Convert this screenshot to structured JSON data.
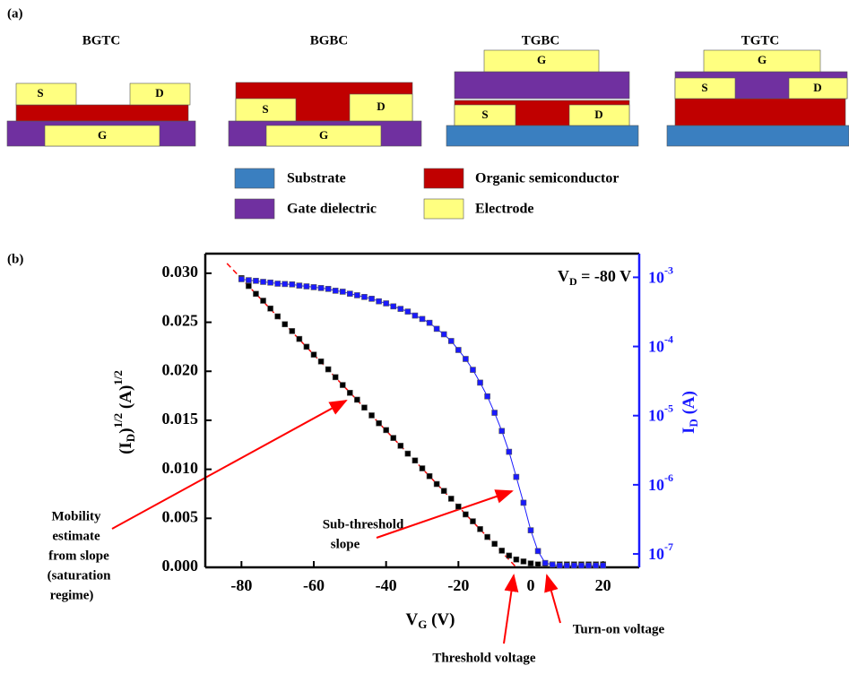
{
  "panel_a": {
    "label": "(a)",
    "structures": [
      {
        "name": "BGTC",
        "labels": [
          "S",
          "D",
          "G"
        ]
      },
      {
        "name": "BGBC",
        "labels": [
          "S",
          "D",
          "G"
        ]
      },
      {
        "name": "TGBC",
        "labels": [
          "G",
          "S",
          "D"
        ]
      },
      {
        "name": "TGTC",
        "labels": [
          "G",
          "S",
          "D"
        ]
      }
    ],
    "legend": [
      "Substrate",
      "Gate dielectric",
      "Organic semiconductor",
      "Electrode"
    ]
  },
  "chart_data": {
    "type": "scatter",
    "panel_label": "(b)",
    "xlabel": [
      "V",
      "G",
      " (V)"
    ],
    "ylabel": [
      "(I",
      "D",
      ")",
      "1/2",
      " (A)",
      "1/2"
    ],
    "y2label": [
      "I",
      "D",
      " (A)"
    ],
    "xlim": [
      -90,
      30
    ],
    "xticks": [
      -80,
      -60,
      -40,
      -20,
      0,
      20
    ],
    "ylim": [
      0,
      0.032
    ],
    "yticks": [
      {
        "value": 0,
        "label": "0.000"
      },
      {
        "value": 0.005,
        "label": "0.005"
      },
      {
        "value": 0.01,
        "label": "0.010"
      },
      {
        "value": 0.015,
        "label": "0.015"
      },
      {
        "value": 0.02,
        "label": "0.020"
      },
      {
        "value": 0.025,
        "label": "0.025"
      },
      {
        "value": 0.03,
        "label": "0.030"
      }
    ],
    "y2lim": [
      6.4e-08,
      0.0022
    ],
    "y2scale": "log",
    "y2ticks": [
      {
        "value": 1e-07,
        "label": "10",
        "exponent": "-7"
      },
      {
        "value": 1e-06,
        "label": "10",
        "exponent": "-6"
      },
      {
        "value": 1e-05,
        "label": "10",
        "exponent": "-5"
      },
      {
        "value": 0.0001,
        "label": "10",
        "exponent": "-4"
      },
      {
        "value": 0.001,
        "label": "10",
        "exponent": "-3"
      }
    ],
    "y2color": "#1a1aff",
    "x": [
      -80,
      -78,
      -76,
      -74,
      -72,
      -70,
      -68,
      -66,
      -64,
      -62,
      -60,
      -58,
      -56,
      -54,
      -52,
      -50,
      -48,
      -46,
      -44,
      -42,
      -40,
      -38,
      -36,
      -34,
      -32,
      -30,
      -28,
      -26,
      -24,
      -22,
      -20,
      -18,
      -16,
      -14,
      -12,
      -10,
      -8,
      -6,
      -4,
      -2,
      0,
      2,
      4,
      6,
      8,
      10,
      12,
      14,
      16,
      18,
      20
    ],
    "series": [
      {
        "color": "#000000",
        "line": false,
        "axis": "y",
        "values": [
          0.0295,
          0.0287,
          0.0279,
          0.0272,
          0.0264,
          0.0256,
          0.0248,
          0.0241,
          0.0233,
          0.0225,
          0.0217,
          0.021,
          0.0202,
          0.0194,
          0.0186,
          0.0178,
          0.0171,
          0.0163,
          0.0155,
          0.0147,
          0.014,
          0.0132,
          0.0124,
          0.0116,
          0.0109,
          0.0101,
          0.0093,
          0.0085,
          0.0078,
          0.007,
          0.0062,
          0.0054,
          0.0047,
          0.0039,
          0.0031,
          0.0024,
          0.0017,
          0.0012,
          0.0008,
          0.0006,
          0.0004,
          0.0003,
          0.0003,
          0.0003,
          0.0003,
          0.0003,
          0.0003,
          0.0003,
          0.0003,
          0.0003,
          0.0003
        ]
      },
      {
        "color": "#1a1aff",
        "line": true,
        "axis": "y2",
        "values": [
          0.00094,
          0.00091,
          0.00089,
          0.00086,
          0.00084,
          0.00081,
          0.0008,
          0.00079,
          0.00076,
          0.00074,
          0.00072,
          0.0007,
          0.00068,
          0.00064,
          0.00062,
          0.00058,
          0.00055,
          0.00052,
          0.00049,
          0.00045,
          0.00042,
          0.00038,
          0.00035,
          0.00032,
          0.00028,
          0.00025,
          0.00022,
          0.00018,
          0.00015,
          0.00012,
          8.9e-05,
          6.6e-05,
          4.6e-05,
          3e-05,
          1.9e-05,
          1.1e-05,
          6e-06,
          3e-06,
          1.3e-06,
          5.5e-07,
          2.2e-07,
          1.1e-07,
          7.4e-08,
          7e-08,
          6.8e-08,
          6.8e-08,
          6.8e-08,
          6.8e-08,
          6.8e-08,
          6.8e-08,
          6.8e-08
        ]
      }
    ],
    "fit": {
      "color": "#ff0000",
      "dashed": true,
      "x": [
        -84,
        -4
      ],
      "values": [
        0.031,
        0
      ]
    },
    "annotations": {
      "vd": [
        "V",
        "D",
        " = -80 V"
      ],
      "mobility": [
        "Mobility",
        "estimate",
        "from slope",
        "(saturation",
        "regime)"
      ],
      "subthreshold": [
        "Sub-threshold",
        "slope"
      ],
      "threshold": "Threshold voltage",
      "turnon": "Turn-on voltage"
    }
  }
}
